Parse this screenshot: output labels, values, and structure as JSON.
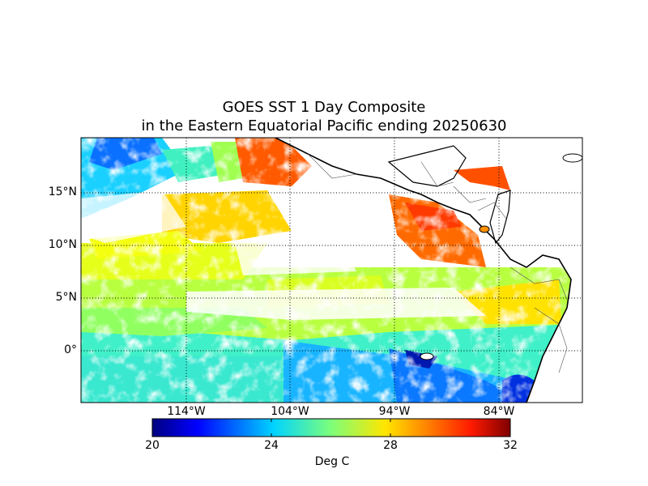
{
  "title": {
    "line1": "GOES SST 1 Day Composite",
    "line2": "in the Eastern Equatorial Pacific ending 20250630"
  },
  "axes": {
    "lat_ticks": [
      "15°N",
      "10°N",
      "5°N",
      "0°"
    ],
    "lon_ticks": [
      "114°W",
      "104°W",
      "94°W",
      "84°W"
    ]
  },
  "colorbar": {
    "ticks": [
      "20",
      "24",
      "28",
      "32"
    ],
    "min": 20,
    "max": 32,
    "label": "Deg C",
    "colormap": "jet"
  },
  "map_extent": {
    "lon_min": -124,
    "lon_max": -76,
    "lat_min": -5,
    "lat_max": 20.5
  },
  "colors": {
    "coastline": "#000000",
    "gridline": "#000000",
    "no_data": "#ffffff"
  }
}
